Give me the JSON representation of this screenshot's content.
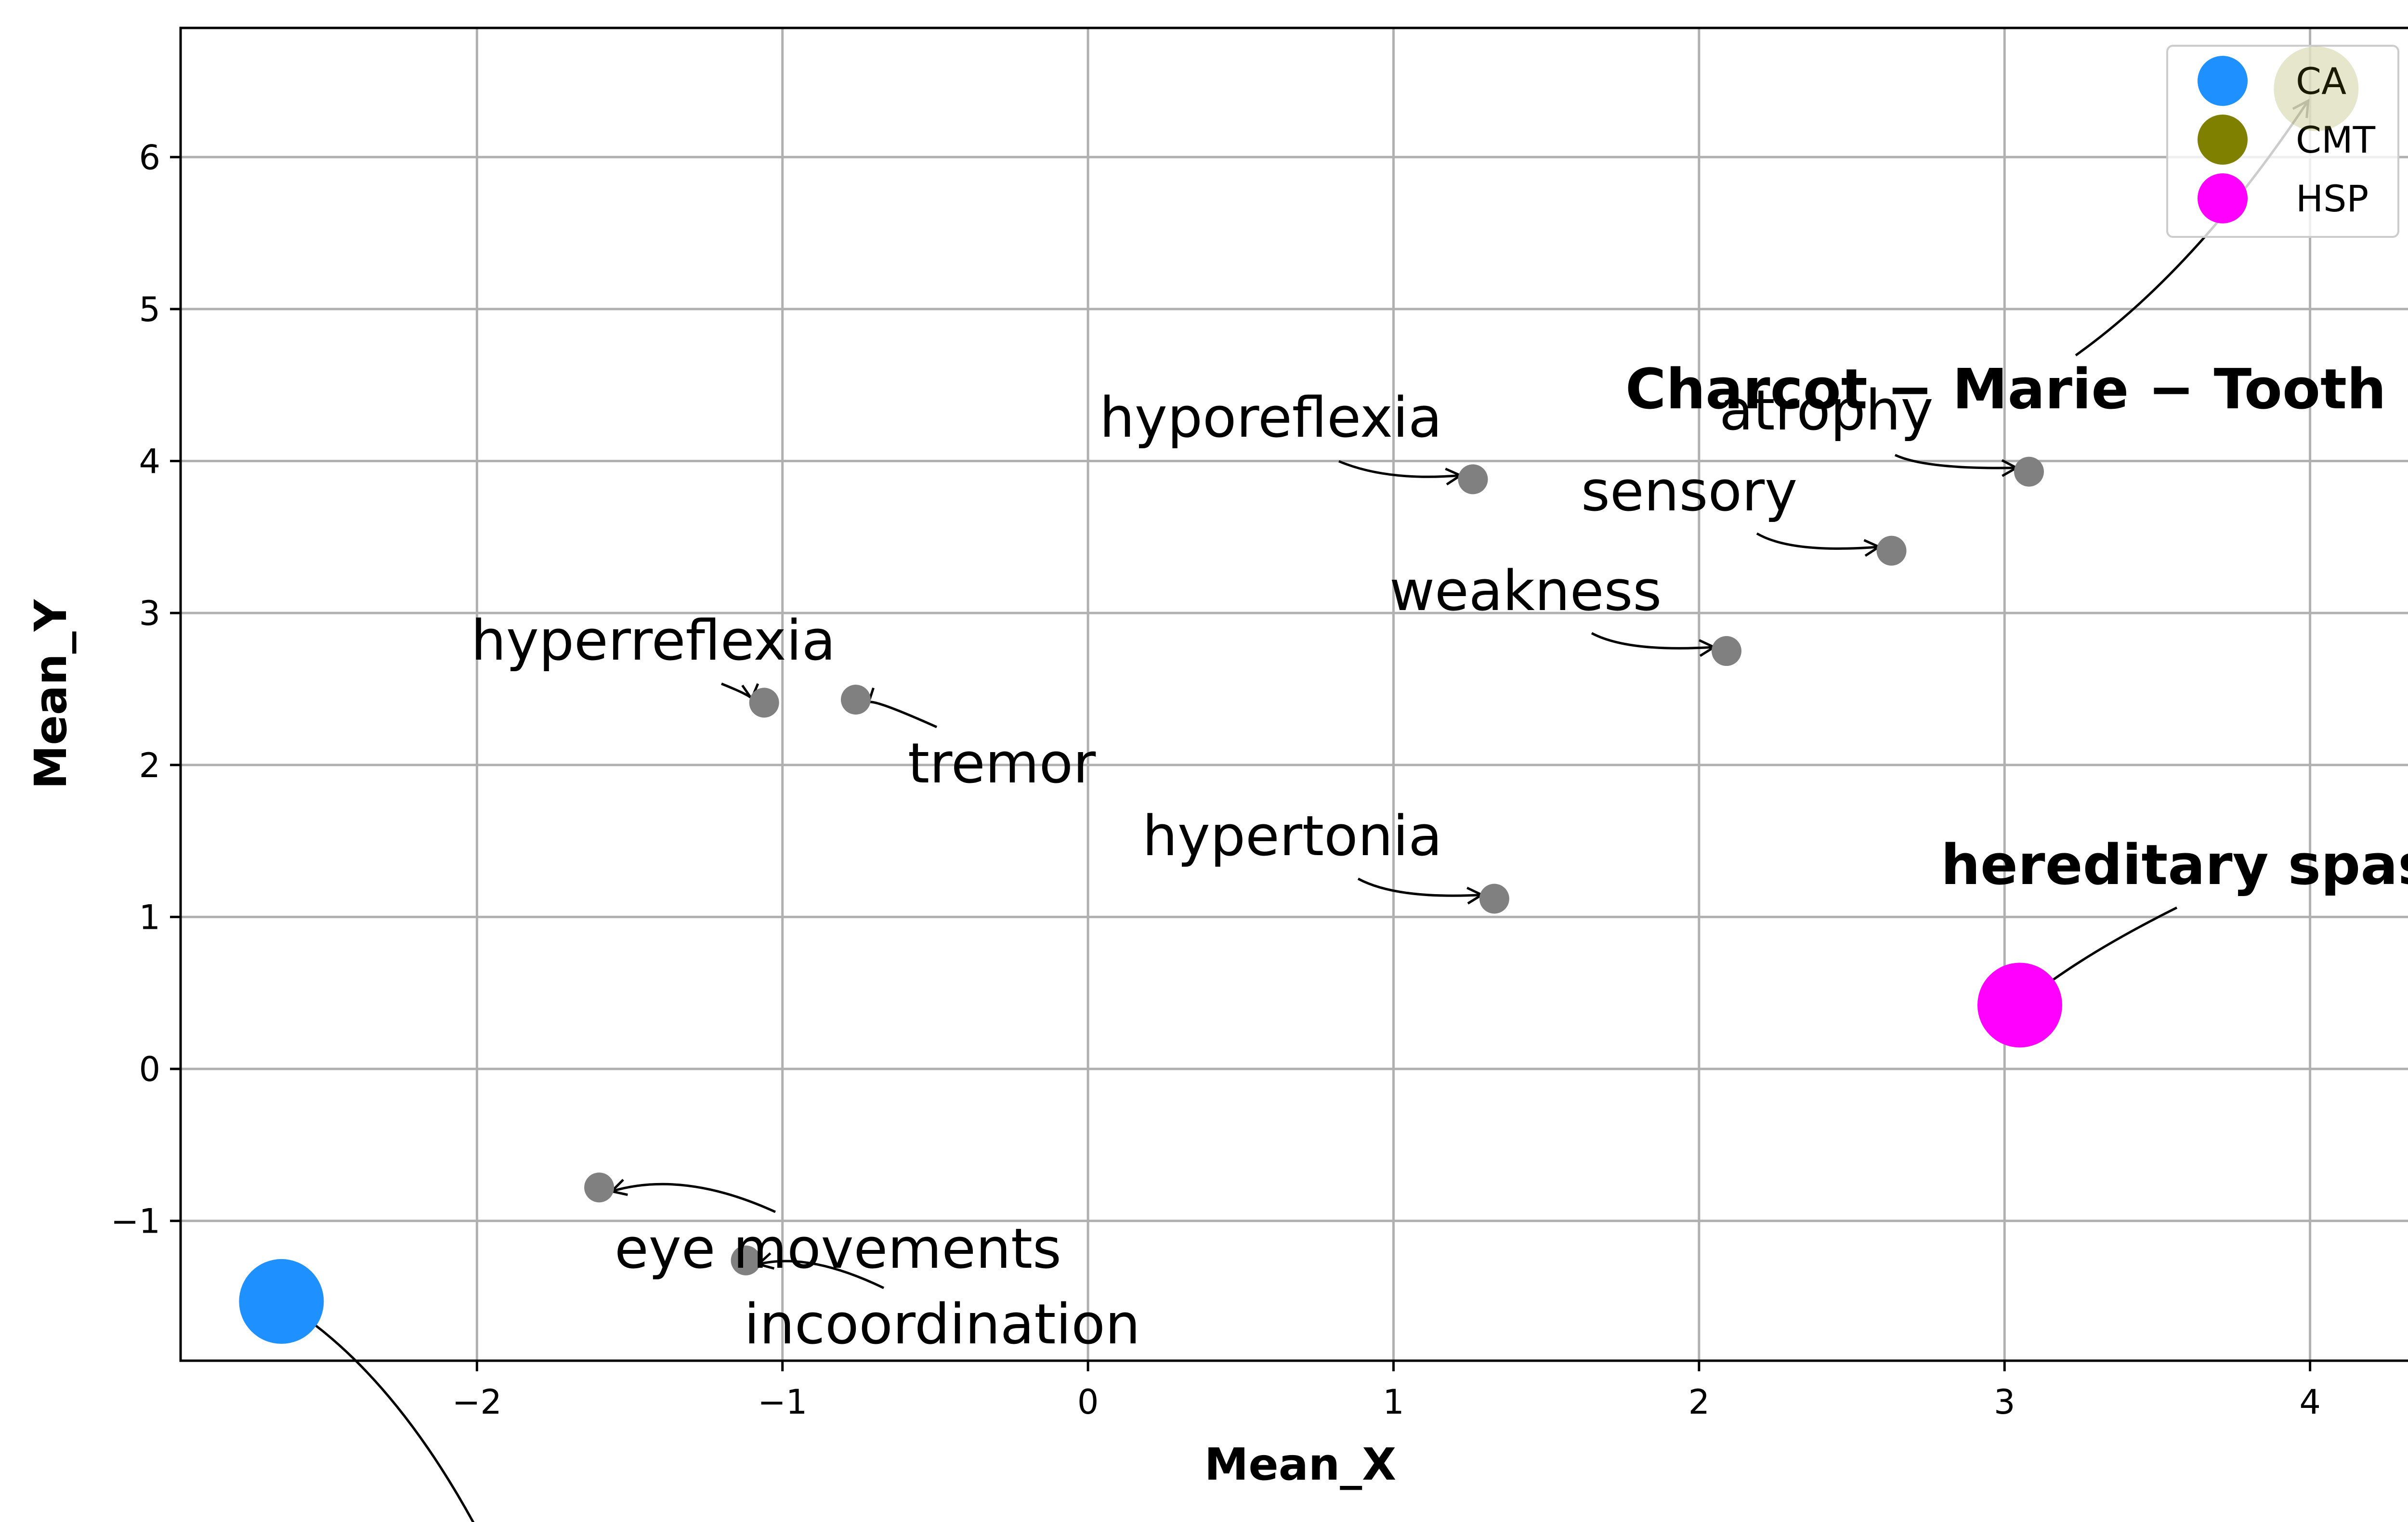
{
  "chart_data": {
    "type": "scatter",
    "xlabel": "Mean_X",
    "ylabel": "Mean_Y",
    "xlim": [
      -2.97,
      4.36
    ],
    "ylim": [
      -1.92,
      6.85
    ],
    "xticks": [
      -2,
      -1,
      0,
      1,
      2,
      3,
      4
    ],
    "yticks": [
      -1,
      0,
      1,
      2,
      3,
      4,
      5,
      6
    ],
    "xtick_labels": [
      "−2",
      "−1",
      "0",
      "1",
      "2",
      "3",
      "4"
    ],
    "ytick_labels": [
      "−1",
      "0",
      "1",
      "2",
      "3",
      "4",
      "5",
      "6"
    ],
    "grid": true,
    "legend_position": "top-right",
    "symptom_color": "#808080",
    "symptoms": [
      {
        "label": "hyporeflexia",
        "x": 1.26,
        "y": 3.88
      },
      {
        "label": "atrophy",
        "x": 3.08,
        "y": 3.93
      },
      {
        "label": "sensory",
        "x": 2.63,
        "y": 3.41
      },
      {
        "label": "weakness",
        "x": 2.09,
        "y": 2.75
      },
      {
        "label": "hyperreflexia",
        "x": -1.06,
        "y": 2.41
      },
      {
        "label": "tremor",
        "x": -0.76,
        "y": 2.43
      },
      {
        "label": "hypertonia",
        "x": 1.33,
        "y": 1.12
      },
      {
        "label": "eye movements",
        "x": -1.6,
        "y": -0.78
      },
      {
        "label": "incoordination",
        "x": -1.12,
        "y": -1.26
      }
    ],
    "diseases": [
      {
        "name": "CA",
        "label": "",
        "x": -2.64,
        "y": -1.53,
        "color": "#1e90ff"
      },
      {
        "name": "CMT",
        "label": "Charcot − Marie − Tooth",
        "x": 4.02,
        "y": 6.45,
        "color": "#808000",
        "alpha": 0.2
      },
      {
        "name": "HSP",
        "label": "hereditary spast",
        "x": 3.05,
        "y": 0.42,
        "color": "#ff00ff"
      }
    ]
  }
}
